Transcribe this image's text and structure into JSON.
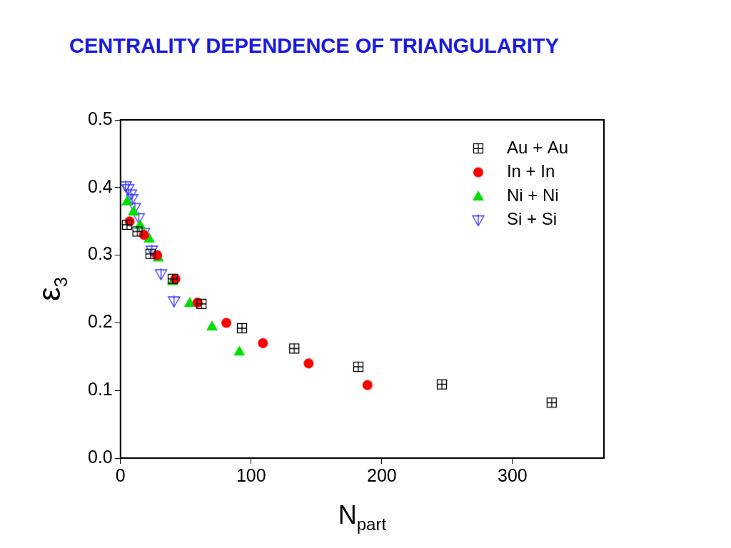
{
  "chart_data": {
    "type": "scatter",
    "title": "CENTRALITY DEPENDENCE OF TRIANGULARITY",
    "x_label": {
      "text": "N",
      "subscript": "part"
    },
    "y_label": {
      "text": "ε",
      "subscript": "3"
    },
    "xlim": [
      0,
      370
    ],
    "xticks": [
      0,
      100,
      200,
      300
    ],
    "ylim": [
      0,
      0.5
    ],
    "yticks": [
      {
        "value": 0,
        "label": "0.0"
      },
      0.1,
      0.2,
      0.3,
      0.4,
      0.5
    ],
    "grid": false,
    "legend": "upper right",
    "series": [
      {
        "name": "Au + Au",
        "color": "#000000",
        "marker": "open_square_cross",
        "x": [
          5,
          13,
          23,
          40,
          62,
          93,
          133,
          182,
          246,
          330
        ],
        "values": [
          0.345,
          0.335,
          0.302,
          0.265,
          0.228,
          0.192,
          0.162,
          0.135,
          0.109,
          0.082
        ]
      },
      {
        "name": "In + In",
        "color": "#ff0000",
        "marker": "circle",
        "x": [
          7,
          18,
          28,
          42,
          59,
          81,
          109,
          144,
          189
        ],
        "values": [
          0.35,
          0.33,
          0.3,
          0.265,
          0.23,
          0.2,
          0.17,
          0.14,
          0.108
        ]
      },
      {
        "name": "Ni + Ni",
        "color": "#00e000",
        "marker": "triangle",
        "x": [
          5,
          10,
          15,
          22,
          29,
          40,
          53,
          70,
          91
        ],
        "values": [
          0.38,
          0.365,
          0.345,
          0.325,
          0.297,
          0.262,
          0.23,
          0.195,
          0.158
        ]
      },
      {
        "name": "Si + Si",
        "color": "#3333ff",
        "marker": "open_triangle_down",
        "x": [
          4,
          6,
          8,
          9,
          11,
          14,
          18,
          24,
          31,
          41
        ],
        "values": [
          0.402,
          0.398,
          0.39,
          0.383,
          0.37,
          0.355,
          0.333,
          0.307,
          0.272,
          0.232
        ]
      }
    ]
  }
}
